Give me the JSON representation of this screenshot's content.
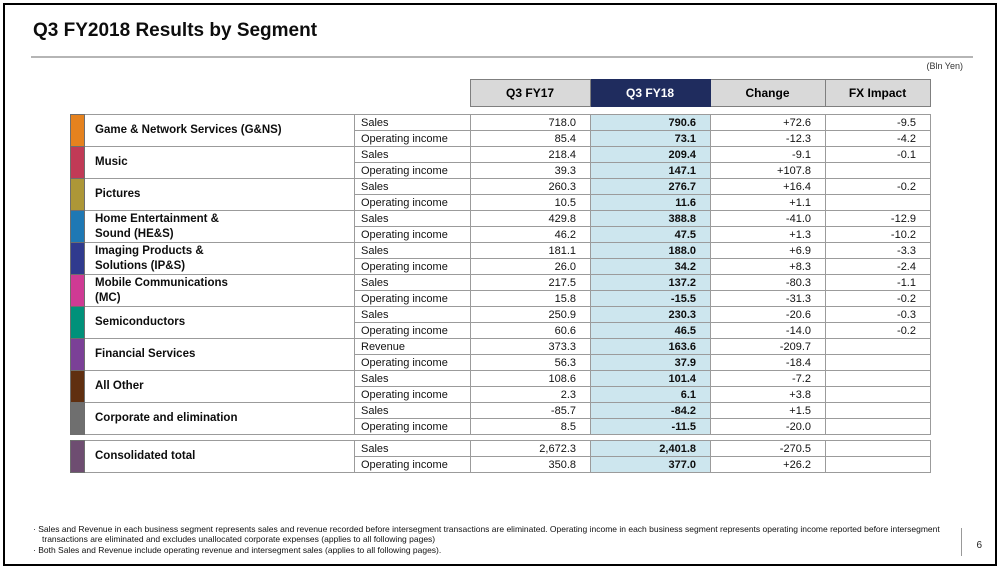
{
  "slide": {
    "title": "Q3 FY2018 Results by Segment",
    "unit_note": "(Bln Yen)",
    "page_number": "6"
  },
  "table": {
    "columns": [
      "Q3 FY17",
      "Q3 FY18",
      "Change",
      "FX Impact"
    ],
    "highlight_column": "Q3 FY18",
    "colors": {
      "fy18_header_bg": "#1f2c5e",
      "fy18_header_text": "#ffffff",
      "fy18_column_bg": "#cde6ee",
      "header_bg": "#d9d9d9",
      "gridline": "#9b9b9b"
    },
    "segments": [
      {
        "name": "Game & Network Services (G&NS)",
        "color": "#e5821e",
        "rows": [
          {
            "label": "Sales",
            "fy17": "718.0",
            "fy18": "790.6",
            "change": "+72.6",
            "fx": "-9.5"
          },
          {
            "label": "Operating income",
            "fy17": "85.4",
            "fy18": "73.1",
            "change": "-12.3",
            "fx": "-4.2"
          }
        ]
      },
      {
        "name": "Music",
        "color": "#c13a56",
        "rows": [
          {
            "label": "Sales",
            "fy17": "218.4",
            "fy18": "209.4",
            "change": "-9.1",
            "fx": "-0.1"
          },
          {
            "label": "Operating income",
            "fy17": "39.3",
            "fy18": "147.1",
            "change": "+107.8",
            "fx": ""
          }
        ]
      },
      {
        "name": "Pictures",
        "color": "#ad9737",
        "rows": [
          {
            "label": "Sales",
            "fy17": "260.3",
            "fy18": "276.7",
            "change": "+16.4",
            "fx": "-0.2"
          },
          {
            "label": "Operating income",
            "fy17": "10.5",
            "fy18": "11.6",
            "change": "+1.1",
            "fx": ""
          }
        ]
      },
      {
        "name": "Home Entertainment &\nSound (HE&S)",
        "color": "#1e78b4",
        "rows": [
          {
            "label": "Sales",
            "fy17": "429.8",
            "fy18": "388.8",
            "change": "-41.0",
            "fx": "-12.9"
          },
          {
            "label": "Operating income",
            "fy17": "46.2",
            "fy18": "47.5",
            "change": "+1.3",
            "fx": "-10.2"
          }
        ]
      },
      {
        "name": "Imaging Products &\nSolutions (IP&S)",
        "color": "#303a8e",
        "rows": [
          {
            "label": "Sales",
            "fy17": "181.1",
            "fy18": "188.0",
            "change": "+6.9",
            "fx": "-3.3"
          },
          {
            "label": "Operating income",
            "fy17": "26.0",
            "fy18": "34.2",
            "change": "+8.3",
            "fx": "-2.4"
          }
        ]
      },
      {
        "name": "Mobile Communications\n(MC)",
        "color": "#cf3a94",
        "rows": [
          {
            "label": "Sales",
            "fy17": "217.5",
            "fy18": "137.2",
            "change": "-80.3",
            "fx": "-1.1"
          },
          {
            "label": "Operating income",
            "fy17": "15.8",
            "fy18": "-15.5",
            "change": "-31.3",
            "fx": "-0.2"
          }
        ]
      },
      {
        "name": "Semiconductors",
        "color": "#00917a",
        "rows": [
          {
            "label": "Sales",
            "fy17": "250.9",
            "fy18": "230.3",
            "change": "-20.6",
            "fx": "-0.3"
          },
          {
            "label": "Operating income",
            "fy17": "60.6",
            "fy18": "46.5",
            "change": "-14.0",
            "fx": "-0.2"
          }
        ]
      },
      {
        "name": "Financial Services",
        "color": "#7b4097",
        "rows": [
          {
            "label": "Revenue",
            "fy17": "373.3",
            "fy18": "163.6",
            "change": "-209.7",
            "fx": ""
          },
          {
            "label": "Operating income",
            "fy17": "56.3",
            "fy18": "37.9",
            "change": "-18.4",
            "fx": ""
          }
        ]
      },
      {
        "name": "All Other",
        "color": "#602f10",
        "rows": [
          {
            "label": "Sales",
            "fy17": "108.6",
            "fy18": "101.4",
            "change": "-7.2",
            "fx": ""
          },
          {
            "label": "Operating income",
            "fy17": "2.3",
            "fy18": "6.1",
            "change": "+3.8",
            "fx": ""
          }
        ]
      },
      {
        "name": "Corporate and elimination",
        "color": "#6f6f6f",
        "rows": [
          {
            "label": "Sales",
            "fy17": "-85.7",
            "fy18": "-84.2",
            "change": "+1.5",
            "fx": ""
          },
          {
            "label": "Operating income",
            "fy17": "8.5",
            "fy18": "-11.5",
            "change": "-20.0",
            "fx": ""
          }
        ]
      }
    ],
    "total": {
      "name": "Consolidated total",
      "color": "#6e4d71",
      "rows": [
        {
          "label": "Sales",
          "fy17": "2,672.3",
          "fy18": "2,401.8",
          "change": "-270.5",
          "fx": ""
        },
        {
          "label": "Operating income",
          "fy17": "350.8",
          "fy18": "377.0",
          "change": "+26.2",
          "fx": ""
        }
      ]
    }
  },
  "footnotes": [
    "· Sales and Revenue in each business segment represents sales and revenue recorded before intersegment transactions are eliminated. Operating income in each business segment represents operating income reported before intersegment transactions are eliminated and excludes unallocated corporate expenses (applies to all following pages)",
    "· Both Sales and Revenue include operating revenue and intersegment sales (applies to all following pages)."
  ]
}
